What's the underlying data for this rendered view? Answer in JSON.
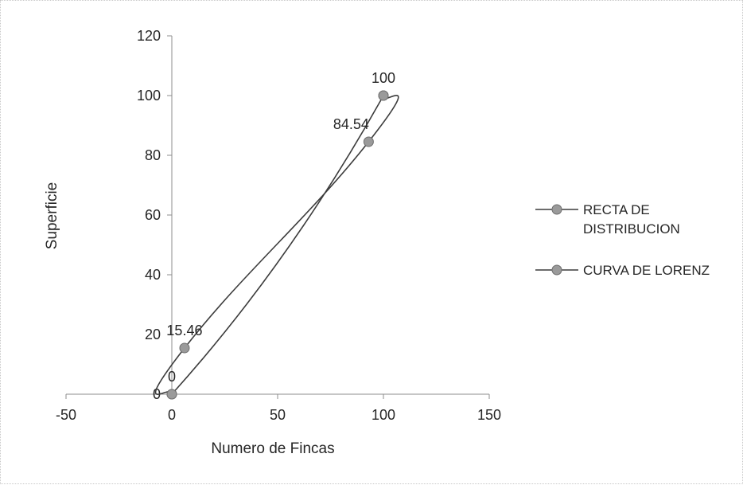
{
  "chart_data": {
    "type": "scatter",
    "title": "",
    "xlabel": "Numero de Fincas",
    "ylabel": "Superficie",
    "xlim": [
      -50,
      150
    ],
    "ylim": [
      0,
      120
    ],
    "x_ticks": [
      "-50",
      "0",
      "50",
      "100",
      "150"
    ],
    "y_ticks": [
      "0",
      "20",
      "40",
      "60",
      "80",
      "100",
      "120"
    ],
    "grid": false,
    "legend_position": "right",
    "line_color": "#3c3c3c",
    "marker_color": "#9a9a9a",
    "series": [
      {
        "name": "RECTA DE DISTRIBUCION",
        "legend_lines": [
          "RECTA DE",
          "DISTRIBUCION"
        ],
        "smooth": true,
        "points": [
          {
            "x": 0,
            "y": 0,
            "label": ""
          },
          {
            "x": 100,
            "y": 100,
            "label": "100"
          }
        ]
      },
      {
        "name": "CURVA DE LORENZ",
        "legend_lines": [
          "CURVA DE LORENZ"
        ],
        "smooth": true,
        "points": [
          {
            "x": 0,
            "y": 0,
            "label": "0"
          },
          {
            "x": 6,
            "y": 15.46,
            "label": "15.46"
          },
          {
            "x": 93,
            "y": 84.54,
            "label": "84.54"
          },
          {
            "x": 100,
            "y": 100,
            "label": ""
          }
        ]
      }
    ]
  }
}
